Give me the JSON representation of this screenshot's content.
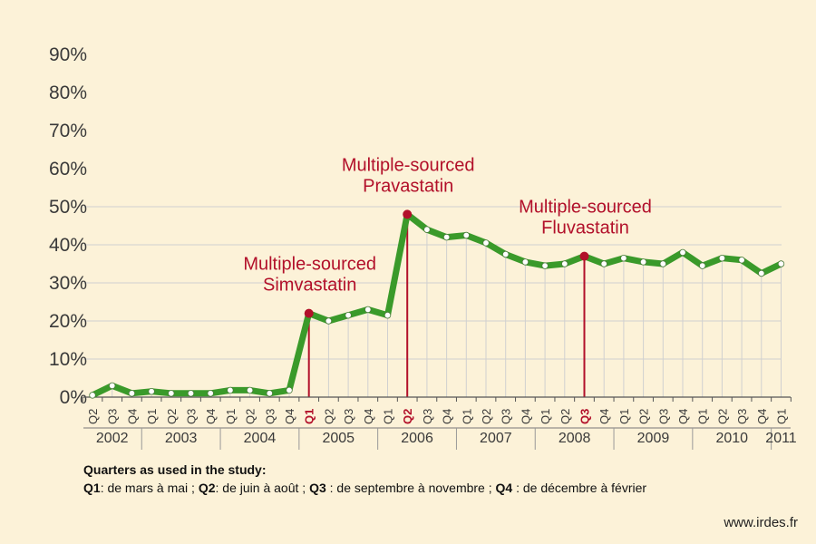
{
  "chart_data": {
    "type": "line",
    "y_unit": "%",
    "ylim": [
      0,
      90
    ],
    "y_ticks": [
      "0%",
      "10%",
      "20%",
      "30%",
      "40%",
      "50%",
      "60%",
      "70%",
      "80%",
      "90%"
    ],
    "grid": "horizontal",
    "categories": [
      "Q2",
      "Q3",
      "Q4",
      "Q1",
      "Q2",
      "Q3",
      "Q4",
      "Q1",
      "Q2",
      "Q3",
      "Q4",
      "Q1",
      "Q2",
      "Q3",
      "Q4",
      "Q1",
      "Q2",
      "Q3",
      "Q4",
      "Q1",
      "Q2",
      "Q3",
      "Q4",
      "Q1",
      "Q2",
      "Q3",
      "Q4",
      "Q1",
      "Q2",
      "Q3",
      "Q4",
      "Q1",
      "Q2",
      "Q3",
      "Q4",
      "Q1"
    ],
    "years": [
      {
        "label": "2002",
        "start": 0,
        "end": 2
      },
      {
        "label": "2003",
        "start": 3,
        "end": 6
      },
      {
        "label": "2004",
        "start": 7,
        "end": 10
      },
      {
        "label": "2005",
        "start": 11,
        "end": 14
      },
      {
        "label": "2006",
        "start": 15,
        "end": 18
      },
      {
        "label": "2007",
        "start": 19,
        "end": 22
      },
      {
        "label": "2008",
        "start": 23,
        "end": 26
      },
      {
        "label": "2009",
        "start": 27,
        "end": 30
      },
      {
        "label": "2010",
        "start": 31,
        "end": 34
      },
      {
        "label": "2011",
        "start": 35,
        "end": 35
      }
    ],
    "values": [
      0.5,
      3.0,
      1.0,
      1.5,
      1.0,
      1.0,
      1.0,
      1.8,
      1.8,
      1.0,
      1.8,
      22.0,
      20.0,
      21.5,
      23.0,
      21.5,
      48.0,
      44.0,
      42.0,
      42.5,
      40.5,
      37.5,
      35.5,
      34.5,
      35.0,
      37.0,
      35.0,
      36.5,
      35.5,
      35.0,
      38.0,
      34.5,
      36.5,
      36.0,
      32.5,
      35.0
    ],
    "highlighted_indices": [
      11,
      16,
      25
    ],
    "annotations": [
      {
        "index": 11,
        "lines": [
          "Multiple-sourced",
          "Simvastatin"
        ]
      },
      {
        "index": 16,
        "lines": [
          "Multiple-sourced",
          "Pravastatin"
        ]
      },
      {
        "index": 25,
        "lines": [
          "Multiple-sourced",
          "Fluvastatin"
        ]
      }
    ],
    "colors": {
      "line": "#3a9a2a",
      "marker_fill": "#ffffff",
      "highlight": "#b2102a",
      "grid": "#d0d0d0",
      "background": "#fcf2d8"
    }
  },
  "footnote": {
    "title": "Quarters as used in the study:",
    "items": [
      {
        "q": "Q1",
        "text": ": de mars à mai ; "
      },
      {
        "q": "Q2",
        "text": ": de juin à août ; "
      },
      {
        "q": "Q3",
        "text": " : de septembre à novembre ; "
      },
      {
        "q": "Q4",
        "text": " : de décembre à février"
      }
    ]
  },
  "credit": "www.irdes.fr"
}
